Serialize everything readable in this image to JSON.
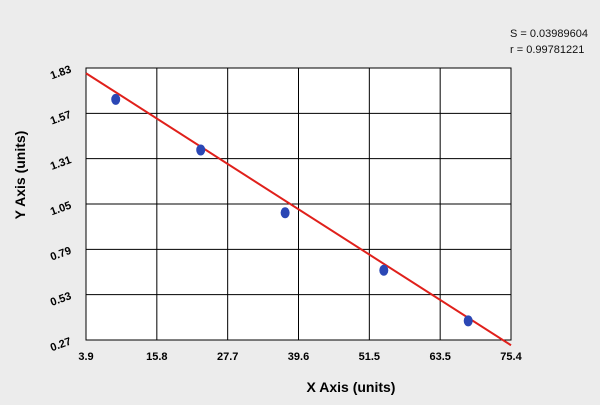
{
  "chart_data": {
    "type": "scatter",
    "title": "",
    "xlabel": "X Axis (units)",
    "ylabel": "Y Axis (units)",
    "xlim": [
      3.9,
      75.4
    ],
    "ylim": [
      0.27,
      1.83
    ],
    "x_ticks": [
      "3.9",
      "15.8",
      "27.7",
      "39.6",
      "51.5",
      "63.5",
      "75.4"
    ],
    "y_ticks": [
      "0.27",
      "0.53",
      "0.79",
      "1.05",
      "1.31",
      "1.57",
      "1.83"
    ],
    "grid": true,
    "series": [
      {
        "x": [
          8.9,
          23.2,
          37.4,
          54.0,
          68.2
        ],
        "y": [
          1.65,
          1.36,
          1.0,
          0.67,
          0.38
        ],
        "color": "#2b47b5",
        "marker": "circle"
      }
    ],
    "fit_line": {
      "x": [
        3.9,
        75.4
      ],
      "y": [
        1.8,
        0.24
      ],
      "color": "#e0201b"
    },
    "annotations": {
      "s_label": "S = 0.03989604",
      "r_label": "r = 0.99781221"
    }
  }
}
